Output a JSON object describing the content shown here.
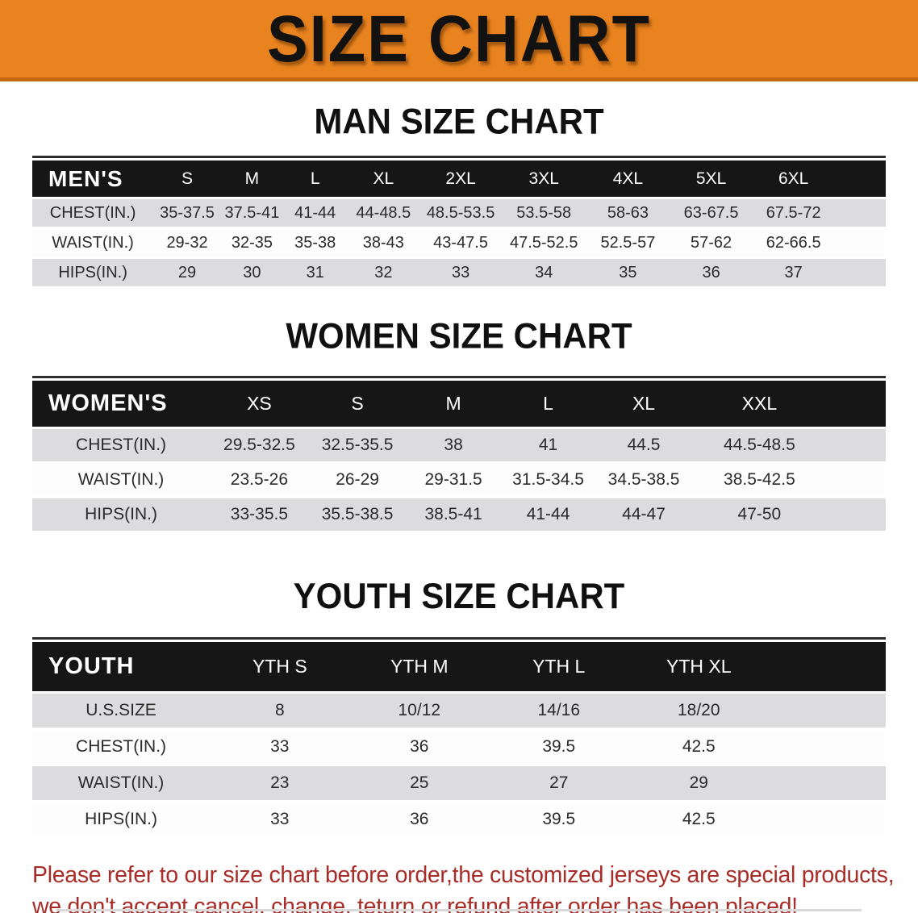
{
  "banner": {
    "title": "SIZE CHART"
  },
  "colors": {
    "banner_orange": "#E8831F",
    "banner_edge": "#C4660E",
    "header_black": "#161616",
    "row_gray": "#DCDCDE",
    "row_white": "#FDFDFD",
    "note_red": "#A82C27",
    "body_text": "#2B2B2B"
  },
  "tables": [
    {
      "id": "men",
      "heading": "MAN SIZE CHART",
      "group_label": "MEN'S",
      "columns": [
        "S",
        "M",
        "L",
        "XL",
        "2XL",
        "3XL",
        "4XL",
        "5XL",
        "6XL"
      ],
      "rows": [
        {
          "label": "CHEST(IN.)",
          "values": [
            "35-37.5",
            "37.5-41",
            "41-44",
            "44-48.5",
            "48.5-53.5",
            "53.5-58",
            "58-63",
            "63-67.5",
            "67.5-72"
          ]
        },
        {
          "label": "WAIST(IN.)",
          "values": [
            "29-32",
            "32-35",
            "35-38",
            "38-43",
            "43-47.5",
            "47.5-52.5",
            "52.5-57",
            "57-62",
            "62-66.5"
          ]
        },
        {
          "label": "HIPS(IN.)",
          "values": [
            "29",
            "30",
            "31",
            "32",
            "33",
            "34",
            "35",
            "36",
            "37"
          ]
        }
      ]
    },
    {
      "id": "women",
      "heading": "WOMEN SIZE CHART",
      "group_label": "WOMEN'S",
      "columns": [
        "XS",
        "S",
        "M",
        "L",
        "XL",
        "XXL"
      ],
      "rows": [
        {
          "label": "CHEST(IN.)",
          "values": [
            "29.5-32.5",
            "32.5-35.5",
            "38",
            "41",
            "44.5",
            "44.5-48.5"
          ]
        },
        {
          "label": "WAIST(IN.)",
          "values": [
            "23.5-26",
            "26-29",
            "29-31.5",
            "31.5-34.5",
            "34.5-38.5",
            "38.5-42.5"
          ]
        },
        {
          "label": "HIPS(IN.)",
          "values": [
            "33-35.5",
            "35.5-38.5",
            "38.5-41",
            "41-44",
            "44-47",
            "47-50"
          ]
        }
      ]
    },
    {
      "id": "youth",
      "heading": "YOUTH SIZE CHART",
      "group_label": "YOUTH",
      "columns": [
        "YTH S",
        "YTH M",
        "YTH L",
        "YTH XL"
      ],
      "rows": [
        {
          "label": "U.S.SIZE",
          "values": [
            "8",
            "10/12",
            "14/16",
            "18/20"
          ]
        },
        {
          "label": "CHEST(IN.)",
          "values": [
            "33",
            "36",
            "39.5",
            "42.5"
          ]
        },
        {
          "label": "WAIST(IN.)",
          "values": [
            "23",
            "25",
            "27",
            "29"
          ]
        },
        {
          "label": "HIPS(IN.)",
          "values": [
            "33",
            "36",
            "39.5",
            "42.5"
          ]
        }
      ]
    }
  ],
  "note": {
    "line1": "Please refer to our size chart before order,the customized jerseys are special products,",
    "line2": "we don't accept cancel, change, teturn or refund after order has been placed!"
  }
}
